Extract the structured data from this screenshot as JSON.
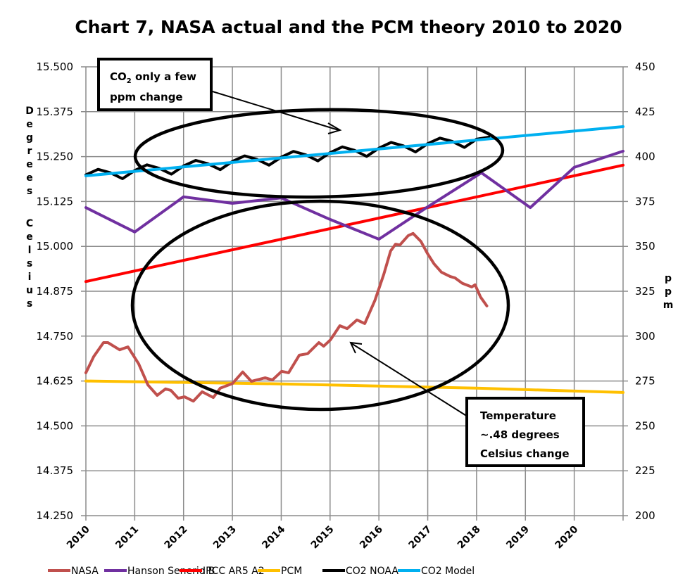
{
  "chart_data": {
    "type": "line",
    "title": "Chart 7, NASA actual and the PCM theory 2010 to 2020",
    "ylabel_left": "Degrees Celsius",
    "ylabel_right": "ppm",
    "xlabel": "",
    "xlim": [
      2010,
      2021
    ],
    "ylim_left": [
      14.25,
      15.5
    ],
    "ylim_right": [
      200,
      450
    ],
    "x_ticks": [
      "2010",
      "2011",
      "2012",
      "2013",
      "2014",
      "2015",
      "2016",
      "2017",
      "2018",
      "2019",
      "2020"
    ],
    "y_ticks_left": [
      "14.250",
      "14.375",
      "14.500",
      "14.625",
      "14.750",
      "14.875",
      "15.000",
      "15.125",
      "15.250",
      "15.375",
      "15.500"
    ],
    "y_ticks_right": [
      "200",
      "225",
      "250",
      "275",
      "300",
      "325",
      "350",
      "375",
      "400",
      "425",
      "450"
    ],
    "grid": true,
    "legend_position": "bottom",
    "series": [
      {
        "name": "NASA",
        "axis": "left",
        "color": "#c0504d",
        "points": [
          [
            2010.0,
            14.648
          ],
          [
            2010.16,
            14.693
          ],
          [
            2010.36,
            14.732
          ],
          [
            2010.45,
            14.732
          ],
          [
            2010.69,
            14.712
          ],
          [
            2010.86,
            14.72
          ],
          [
            2011.08,
            14.673
          ],
          [
            2011.27,
            14.614
          ],
          [
            2011.46,
            14.585
          ],
          [
            2011.63,
            14.603
          ],
          [
            2011.74,
            14.599
          ],
          [
            2011.89,
            14.577
          ],
          [
            2012.02,
            14.581
          ],
          [
            2012.2,
            14.569
          ],
          [
            2012.38,
            14.595
          ],
          [
            2012.61,
            14.579
          ],
          [
            2012.75,
            14.605
          ],
          [
            2013.0,
            14.618
          ],
          [
            2013.21,
            14.65
          ],
          [
            2013.39,
            14.624
          ],
          [
            2013.67,
            14.634
          ],
          [
            2013.82,
            14.628
          ],
          [
            2014.01,
            14.652
          ],
          [
            2014.15,
            14.648
          ],
          [
            2014.37,
            14.697
          ],
          [
            2014.54,
            14.701
          ],
          [
            2014.77,
            14.732
          ],
          [
            2014.87,
            14.722
          ],
          [
            2015.01,
            14.74
          ],
          [
            2015.2,
            14.779
          ],
          [
            2015.35,
            14.771
          ],
          [
            2015.55,
            14.795
          ],
          [
            2015.71,
            14.785
          ],
          [
            2015.92,
            14.85
          ],
          [
            2016.1,
            14.922
          ],
          [
            2016.24,
            14.987
          ],
          [
            2016.34,
            15.006
          ],
          [
            2016.43,
            15.004
          ],
          [
            2016.6,
            15.03
          ],
          [
            2016.7,
            15.036
          ],
          [
            2016.86,
            15.014
          ],
          [
            2016.99,
            14.981
          ],
          [
            2017.13,
            14.951
          ],
          [
            2017.28,
            14.928
          ],
          [
            2017.46,
            14.916
          ],
          [
            2017.56,
            14.912
          ],
          [
            2017.71,
            14.897
          ],
          [
            2017.9,
            14.887
          ],
          [
            2017.97,
            14.893
          ],
          [
            2018.08,
            14.859
          ],
          [
            2018.21,
            14.834
          ]
        ]
      },
      {
        "name": "Hanson Senerio B",
        "axis": "left",
        "color": "#7030a0",
        "points": [
          [
            2010,
            15.108
          ],
          [
            2011,
            15.04
          ],
          [
            2012,
            15.138
          ],
          [
            2013,
            15.12
          ],
          [
            2014,
            15.135
          ],
          [
            2015,
            15.075
          ],
          [
            2016,
            15.02
          ],
          [
            2017,
            15.11
          ],
          [
            2018.1,
            15.205
          ],
          [
            2019.1,
            15.108
          ],
          [
            2020,
            15.22
          ],
          [
            2021,
            15.265
          ]
        ]
      },
      {
        "name": "IPCC AR5 A2",
        "axis": "left",
        "color": "#ff0000",
        "points": [
          [
            2010,
            14.902
          ],
          [
            2021,
            15.226
          ]
        ]
      },
      {
        "name": "PCM",
        "axis": "left",
        "color": "#ffc000",
        "points": [
          [
            2010,
            14.625
          ],
          [
            2014,
            14.617
          ],
          [
            2018,
            14.605
          ],
          [
            2021,
            14.593
          ]
        ]
      },
      {
        "name": "CO2 NOAA",
        "axis": "right",
        "color": "#000000",
        "points": [
          [
            2010.0,
            389.8
          ],
          [
            2010.25,
            392.9
          ],
          [
            2010.5,
            391.0
          ],
          [
            2010.75,
            387.7
          ],
          [
            2011.0,
            392.3
          ],
          [
            2011.25,
            395.4
          ],
          [
            2011.5,
            393.5
          ],
          [
            2011.75,
            390.2
          ],
          [
            2012.0,
            394.8
          ],
          [
            2012.25,
            397.9
          ],
          [
            2012.5,
            396.0
          ],
          [
            2012.75,
            392.7
          ],
          [
            2013.0,
            397.3
          ],
          [
            2013.25,
            400.4
          ],
          [
            2013.5,
            398.5
          ],
          [
            2013.75,
            395.2
          ],
          [
            2014.0,
            399.7
          ],
          [
            2014.25,
            402.9
          ],
          [
            2014.5,
            401.0
          ],
          [
            2014.75,
            397.6
          ],
          [
            2015.0,
            402.2
          ],
          [
            2015.25,
            405.4
          ],
          [
            2015.5,
            403.5
          ],
          [
            2015.75,
            400.1
          ],
          [
            2016.0,
            404.7
          ],
          [
            2016.25,
            407.9
          ],
          [
            2016.5,
            406.0
          ],
          [
            2016.75,
            402.6
          ],
          [
            2017.0,
            407.2
          ],
          [
            2017.25,
            410.3
          ],
          [
            2017.5,
            408.5
          ],
          [
            2017.75,
            405.1
          ],
          [
            2018.0,
            409.7
          ],
          [
            2018.25,
            410.8
          ]
        ]
      },
      {
        "name": "CO2 Model",
        "axis": "right",
        "color": "#00b0f0",
        "points": [
          [
            2010,
            389.3
          ],
          [
            2021,
            416.7
          ]
        ]
      }
    ],
    "annotations": [
      {
        "lines": [
          "CO",
          "2",
          " only a few",
          "ppm change"
        ]
      },
      {
        "lines": [
          "Temperature",
          "~.48 degrees",
          "Celsius change"
        ]
      }
    ]
  }
}
